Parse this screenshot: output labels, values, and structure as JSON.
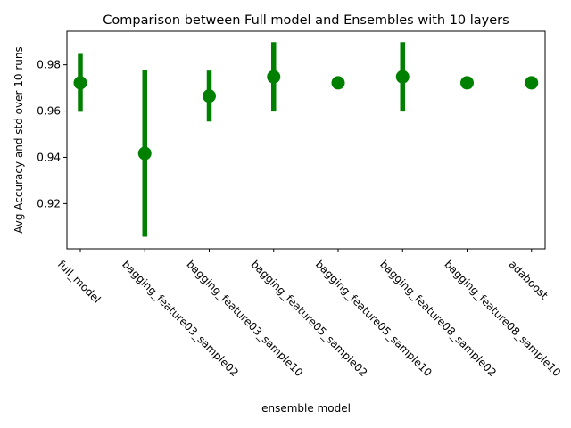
{
  "chart_data": {
    "type": "scatter",
    "title": "Comparison between Full model and Ensembles with 10 layers",
    "xlabel": "ensemble model",
    "ylabel": "Avg Accuracy and std over 10 runs",
    "categories": [
      "full_model",
      "bagging_feature03_sample02",
      "bagging_feature03_sample10",
      "bagging_feature05_sample02",
      "bagging_feature05_sample10",
      "bagging_feature08_sample02",
      "bagging_feature08_sample10",
      "adaboost"
    ],
    "means": [
      0.9722,
      0.9417,
      0.9665,
      0.9748,
      0.9722,
      0.9748,
      0.9722,
      0.9722
    ],
    "stds": [
      0.0125,
      0.036,
      0.011,
      0.015,
      0.0,
      0.015,
      0.0,
      0.0
    ],
    "ylim": [
      0.9005,
      0.9945
    ],
    "yticks": [
      0.92,
      0.94,
      0.96,
      0.98
    ],
    "ytick_labels": [
      "0.92",
      "0.94",
      "0.96",
      "0.98"
    ],
    "grid": false,
    "color": "#008000"
  }
}
